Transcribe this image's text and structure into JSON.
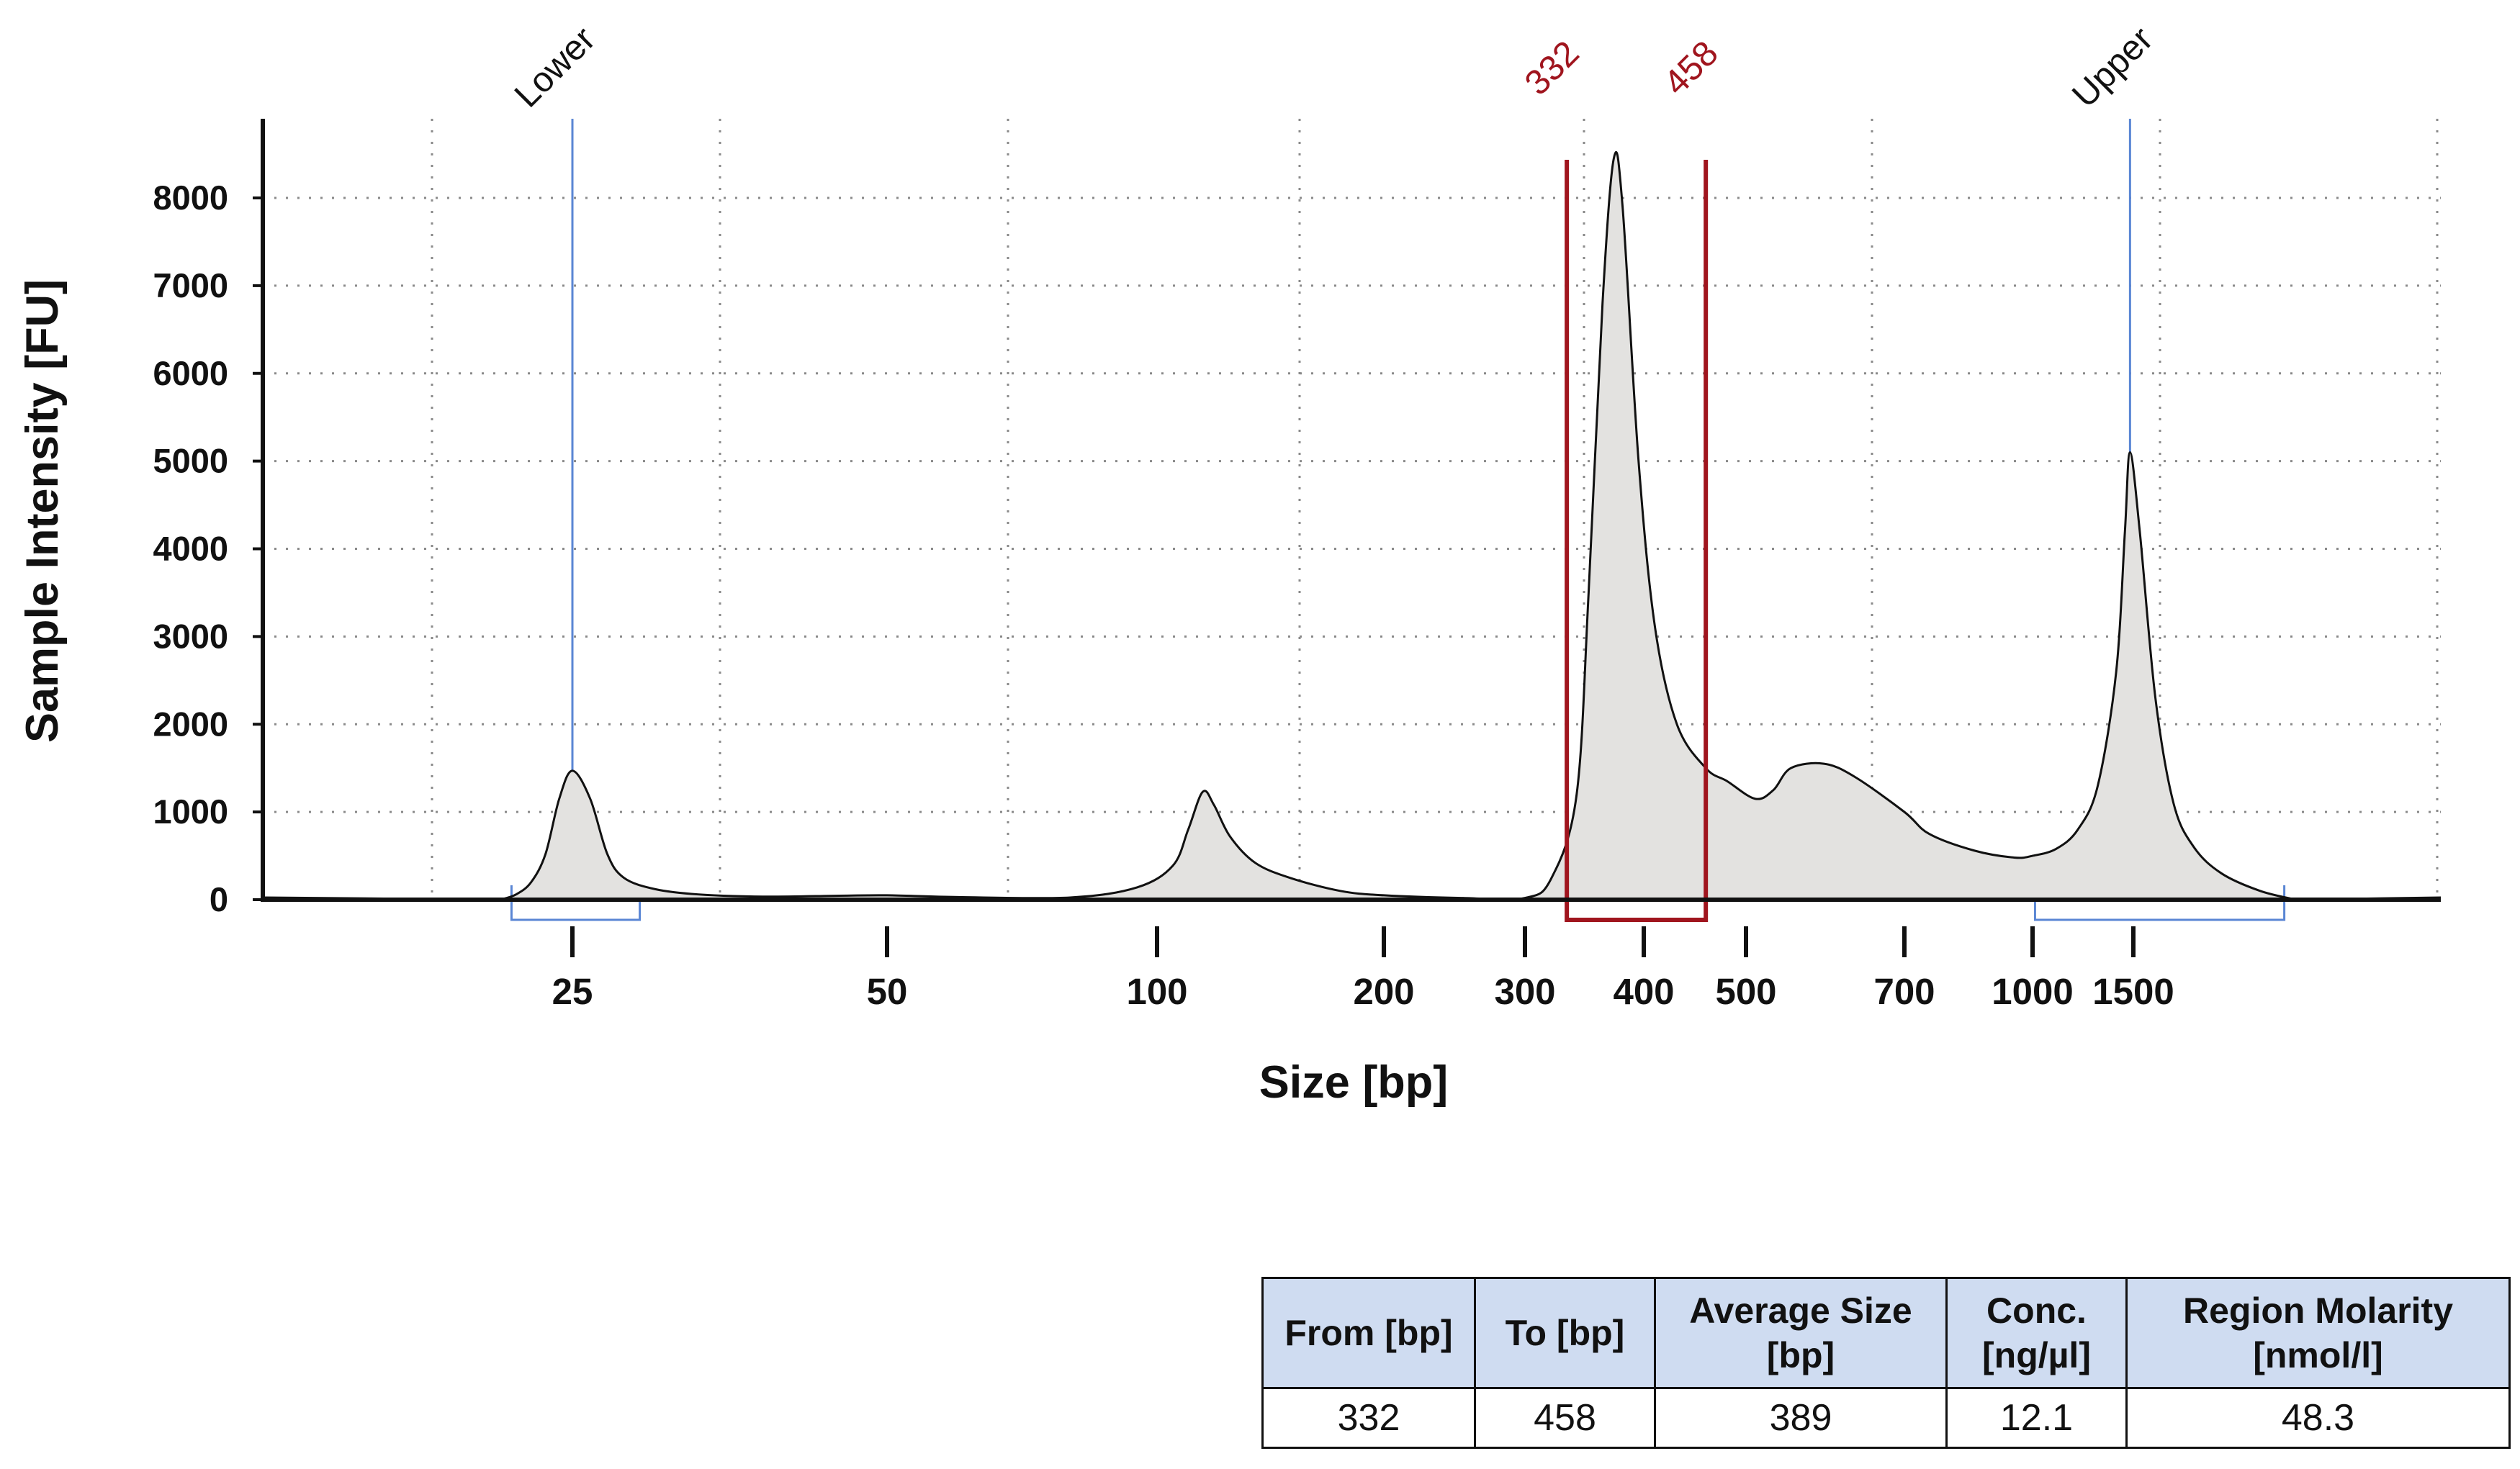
{
  "chart_data": {
    "type": "area",
    "xlabel": "Size [bp]",
    "ylabel": "Sample Intensity [FU]",
    "x_scale": "nonlinear ladder",
    "y_ticks": [
      0,
      1000,
      2000,
      3000,
      4000,
      5000,
      6000,
      7000,
      8000
    ],
    "x_ticks": [
      25,
      50,
      100,
      200,
      300,
      400,
      500,
      700,
      1000,
      1500
    ],
    "ylim": [
      0,
      8900
    ],
    "grid": true,
    "series": [
      {
        "points": [
          [
            20,
            0
          ],
          [
            21,
            60
          ],
          [
            22,
            200
          ],
          [
            23,
            520
          ],
          [
            24,
            1150
          ],
          [
            25,
            1470
          ],
          [
            26,
            1150
          ],
          [
            27,
            520
          ],
          [
            28,
            250
          ],
          [
            30,
            120
          ],
          [
            33,
            60
          ],
          [
            38,
            35
          ],
          [
            45,
            45
          ],
          [
            50,
            50
          ],
          [
            60,
            30
          ],
          [
            80,
            25
          ],
          [
            95,
            140
          ],
          [
            105,
            390
          ],
          [
            110,
            800
          ],
          [
            115,
            1230
          ],
          [
            119,
            1080
          ],
          [
            125,
            720
          ],
          [
            135,
            420
          ],
          [
            150,
            250
          ],
          [
            175,
            100
          ],
          [
            200,
            50
          ],
          [
            250,
            20
          ],
          [
            300,
            20
          ],
          [
            320,
            250
          ],
          [
            340,
            1200
          ],
          [
            350,
            3500
          ],
          [
            362,
            6800
          ],
          [
            372,
            8450
          ],
          [
            380,
            7900
          ],
          [
            395,
            5000
          ],
          [
            410,
            3100
          ],
          [
            430,
            2000
          ],
          [
            458,
            1500
          ],
          [
            480,
            1350
          ],
          [
            510,
            1150
          ],
          [
            530,
            1250
          ],
          [
            550,
            1500
          ],
          [
            590,
            1550
          ],
          [
            630,
            1400
          ],
          [
            700,
            1000
          ],
          [
            750,
            750
          ],
          [
            850,
            560
          ],
          [
            950,
            480
          ],
          [
            1000,
            500
          ],
          [
            1100,
            580
          ],
          [
            1200,
            800
          ],
          [
            1300,
            1300
          ],
          [
            1400,
            2600
          ],
          [
            1450,
            4200
          ],
          [
            1480,
            5100
          ],
          [
            1520,
            4200
          ],
          [
            1570,
            2300
          ],
          [
            1630,
            1100
          ],
          [
            1700,
            600
          ],
          [
            1800,
            300
          ],
          [
            1950,
            100
          ],
          [
            2100,
            0
          ]
        ]
      }
    ],
    "markers": [
      {
        "label": "Lower",
        "x": 25,
        "range": [
          20.7,
          29
        ]
      },
      {
        "label": "Upper",
        "x": 1480,
        "range": [
          1010,
          2050
        ]
      }
    ],
    "region": {
      "from_label": "332",
      "to_label": "458",
      "from": 332,
      "to": 458
    },
    "colors": {
      "fill": "#e3e2e0",
      "line": "#111111",
      "marker": "#5a86d4",
      "region": "#a0151e",
      "header_bg": "#cfdcf1"
    }
  },
  "table": {
    "headers": [
      {
        "l1": "From [bp]",
        "l2": ""
      },
      {
        "l1": "To [bp]",
        "l2": ""
      },
      {
        "l1": "Average Size",
        "l2": "[bp]"
      },
      {
        "l1": "Conc.",
        "l2": "[ng/µl]"
      },
      {
        "l1": "Region Molarity",
        "l2": "[nmol/l]"
      }
    ],
    "row": [
      "332",
      "458",
      "389",
      "12.1",
      "48.3"
    ]
  }
}
